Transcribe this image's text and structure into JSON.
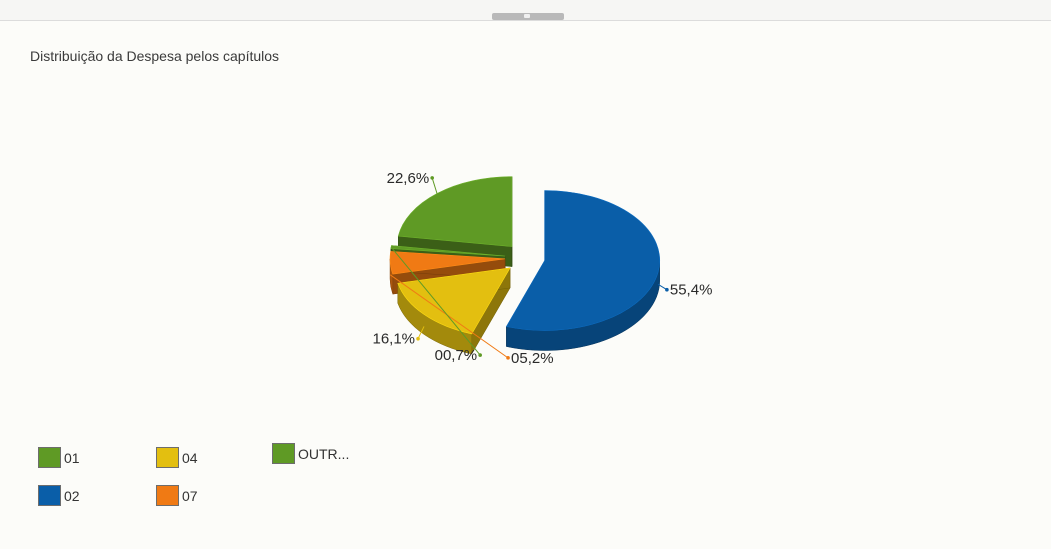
{
  "title": "Distribuição da Despesa pelos capítulos",
  "chart_data": {
    "type": "pie",
    "title": "Distribuição da Despesa pelos capítulos",
    "slices": [
      {
        "name": "02",
        "value": 55.4,
        "label": "55,4%",
        "color": "#0a5ea8"
      },
      {
        "name": "04",
        "value": 16.1,
        "label": "16,1%",
        "color": "#e3bf10"
      },
      {
        "name": "07",
        "value": 5.2,
        "label": "05,2%",
        "color": "#f07a14"
      },
      {
        "name": "OUTR...",
        "value": 0.7,
        "label": "00,7%",
        "color": "#5f9a25"
      },
      {
        "name": "01",
        "value": 22.6,
        "label": "22,6%",
        "color": "#5f9a25"
      }
    ]
  },
  "legend": {
    "items": [
      {
        "label": "01",
        "color": "#5f9a25"
      },
      {
        "label": "02",
        "color": "#0a5ea8"
      },
      {
        "label": "04",
        "color": "#e3bf10"
      },
      {
        "label": "07",
        "color": "#f07a14"
      },
      {
        "label": "OUTR...",
        "color": "#5f9a25"
      }
    ]
  }
}
